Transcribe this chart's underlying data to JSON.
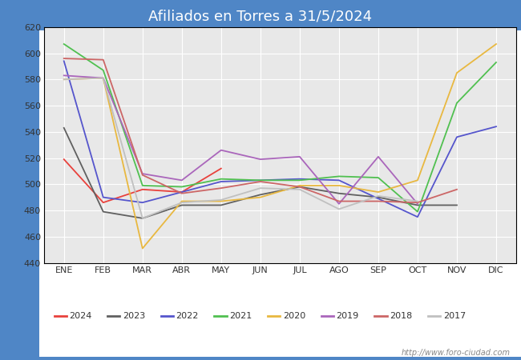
{
  "title": "Afiliados en Torres a 31/5/2024",
  "header_bg": "#4f86c6",
  "months": [
    "ENE",
    "FEB",
    "MAR",
    "ABR",
    "MAY",
    "JUN",
    "JUL",
    "AGO",
    "SEP",
    "OCT",
    "NOV",
    "DIC"
  ],
  "ylim": [
    440,
    620
  ],
  "yticks": [
    440,
    460,
    480,
    500,
    520,
    540,
    560,
    580,
    600,
    620
  ],
  "series": {
    "2024": {
      "color": "#e8413c",
      "data": [
        519,
        486,
        496,
        494,
        512,
        null,
        null,
        null,
        null,
        null,
        null,
        null
      ]
    },
    "2023": {
      "color": "#606060",
      "data": [
        543,
        479,
        474,
        484,
        484,
        492,
        498,
        493,
        490,
        484,
        484,
        null
      ]
    },
    "2022": {
      "color": "#5555cc",
      "data": [
        594,
        490,
        486,
        494,
        502,
        503,
        504,
        503,
        489,
        475,
        536,
        544
      ]
    },
    "2021": {
      "color": "#50c050",
      "data": [
        607,
        587,
        499,
        498,
        504,
        503,
        503,
        506,
        505,
        479,
        562,
        593
      ]
    },
    "2020": {
      "color": "#e8b840",
      "data": [
        580,
        581,
        451,
        487,
        487,
        490,
        499,
        499,
        494,
        503,
        585,
        607
      ]
    },
    "2019": {
      "color": "#aa66bb",
      "data": [
        583,
        581,
        508,
        503,
        526,
        519,
        521,
        485,
        521,
        485,
        null,
        null
      ]
    },
    "2018": {
      "color": "#cc6666",
      "data": [
        596,
        595,
        507,
        493,
        497,
        502,
        498,
        487,
        487,
        486,
        496,
        null
      ]
    },
    "2017": {
      "color": "#c0c0c0",
      "data": [
        580,
        581,
        474,
        486,
        488,
        497,
        496,
        481,
        491,
        487,
        null,
        null
      ]
    }
  },
  "legend_order": [
    "2024",
    "2023",
    "2022",
    "2021",
    "2020",
    "2019",
    "2018",
    "2017"
  ],
  "watermark": "http://www.foro-ciudad.com",
  "plot_bg": "#e8e8e8",
  "grid_color": "#ffffff"
}
